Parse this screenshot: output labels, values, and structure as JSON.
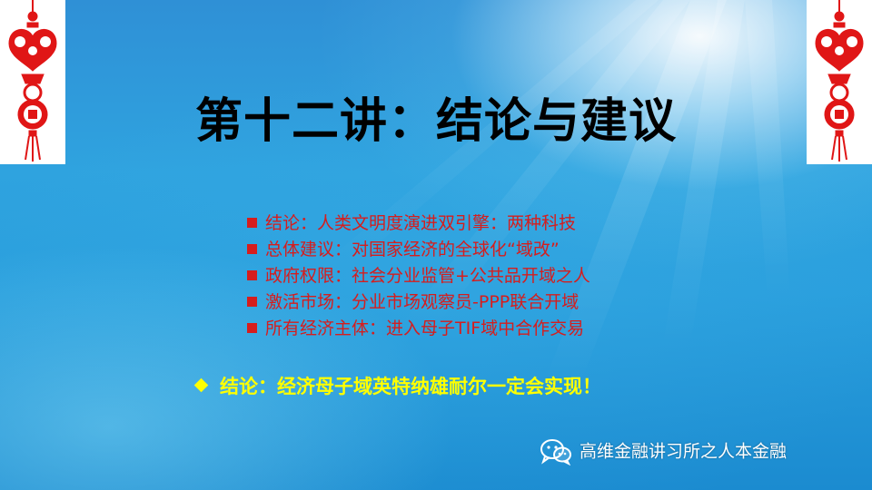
{
  "slide": {
    "title": "第十二讲：结论与建议",
    "points": [
      {
        "text": "结论：人类文明度演进双引擎：两种科技"
      },
      {
        "text": "总体建议：对国家经济的全球化“域改”"
      },
      {
        "text": "政府权限：社会分业监管+公共品开域之人"
      },
      {
        "text": "激活市场：分业市场观察员-PPP联合开域"
      },
      {
        "text": "所有经济主体：进入母子TIF域中合作交易"
      }
    ],
    "conclusion": "结论：经济母子域英特纳雄耐尔一定会实现！",
    "watermark": "高维金融讲习所之人本金融",
    "colors": {
      "background": "#2a9fdd",
      "title": "#000000",
      "points": "#d61d1d",
      "conclusion": "#ffff00",
      "ornament": "#e01616"
    },
    "icons": {
      "corner_ornament": "chinese-knot-fu-ornament-icon",
      "bullet": "red-square-bullet-icon",
      "conclusion_bullet": "yellow-diamond-bullet-icon",
      "watermark": "wechat-icon"
    }
  }
}
